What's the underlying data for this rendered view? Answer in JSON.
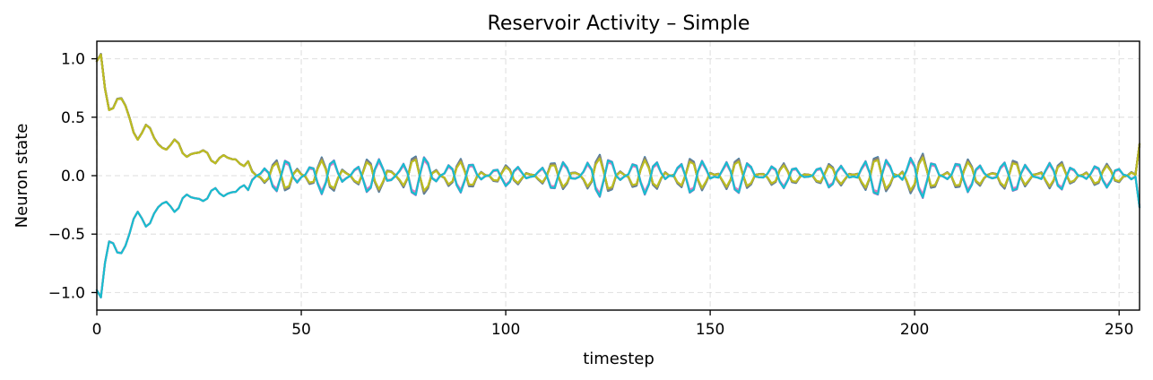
{
  "chart_data": {
    "type": "line",
    "title": "Reservoir Activity – Simple",
    "xlabel": "timestep",
    "ylabel": "Neuron state",
    "xlim": [
      0,
      255
    ],
    "ylim": [
      -1.15,
      1.15
    ],
    "xticks": [
      0,
      50,
      100,
      150,
      200,
      250
    ],
    "xtick_labels": [
      "0",
      "50",
      "100",
      "150",
      "200",
      "250"
    ],
    "yticks": [
      -1.0,
      -0.5,
      0.0,
      0.5,
      1.0
    ],
    "ytick_labels": [
      "−1.0",
      "−0.5",
      "0.0",
      "0.5",
      "1.0"
    ],
    "grid": true,
    "legend": "none",
    "num_points": 256,
    "series": [
      {
        "color": "#1f77b4",
        "sign": 1,
        "amp": 1.08
      },
      {
        "color": "#ff7f0e",
        "sign": -1,
        "amp": 0.98
      },
      {
        "color": "#2ca02c",
        "sign": 1,
        "amp": 0.94
      },
      {
        "color": "#d62728",
        "sign": 1,
        "amp": 0.96
      },
      {
        "color": "#9467bd",
        "sign": -1,
        "amp": 1.1
      },
      {
        "color": "#8c564b",
        "sign": 1,
        "amp": 1.0
      },
      {
        "color": "#e377c2",
        "sign": -1,
        "amp": 0.92
      },
      {
        "color": "#7f7f7f",
        "sign": 1,
        "amp": 1.04
      },
      {
        "color": "#bcbd22",
        "sign": 1,
        "amp": 0.9
      },
      {
        "color": "#17becf",
        "sign": -1,
        "amp": 1.06
      }
    ]
  }
}
